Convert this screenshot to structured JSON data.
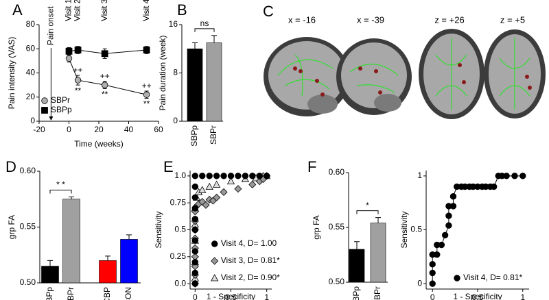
{
  "chart_data": [
    {
      "type": "line",
      "panel": "A",
      "ylabel": "Pain intensity (VAS)",
      "xlabel": "Time (weeks)",
      "xlim": [
        -20,
        60
      ],
      "xticks": [
        -20,
        0,
        20,
        40,
        60
      ],
      "ylim": [
        0,
        80
      ],
      "yticks": [
        0,
        20,
        40,
        60,
        80
      ],
      "legend": "lower left",
      "events": [
        {
          "label": "Pain onset",
          "x": -12
        }
      ],
      "visits": [
        {
          "label": "Visit 1",
          "x": 0
        },
        {
          "label": "Visit 2",
          "x": 6
        },
        {
          "label": "Visit 3",
          "x": 24
        },
        {
          "label": "Visit 4",
          "x": 52
        }
      ],
      "series": [
        {
          "name": "SBPr",
          "color": "#b0b0b0",
          "marker": "circle",
          "x": [
            0,
            6,
            24,
            52
          ],
          "values": [
            52,
            34,
            30,
            22
          ],
          "errors": [
            3,
            4,
            3,
            3
          ],
          "labels_above": [
            null,
            "++",
            "++",
            "++"
          ],
          "labels_below": [
            null,
            "**",
            "**",
            "**"
          ]
        },
        {
          "name": "SBPp",
          "color": "#000000",
          "marker": "square",
          "x": [
            0,
            6,
            24,
            52
          ],
          "values": [
            58,
            59,
            56,
            59
          ],
          "errors": [
            3,
            3,
            4,
            3
          ]
        }
      ]
    },
    {
      "type": "bar",
      "panel": "B",
      "ylabel": "Pain duration (week)",
      "categories": [
        "SBPp",
        "SBPr"
      ],
      "values": [
        12,
        13
      ],
      "errors": [
        1,
        1.2
      ],
      "colors": [
        "#000000",
        "#a0a0a0"
      ],
      "ylim": [
        0,
        16
      ],
      "yticks": [
        0,
        8,
        16
      ],
      "significance": "ns"
    },
    {
      "type": "image",
      "panel": "C",
      "labels": [
        "x = -16",
        "x = -39",
        "z = +26",
        "z = +5"
      ]
    },
    {
      "type": "bar",
      "panel": "D",
      "ylabel": "grp FA",
      "categories": [
        "SBPp",
        "SBPr",
        "CBP",
        "CON"
      ],
      "values": [
        0.515,
        0.575,
        0.52,
        0.539
      ],
      "errors": [
        0.005,
        0.002,
        0.004,
        0.004
      ],
      "colors": [
        "#000000",
        "#a0a0a0",
        "#ff0000",
        "#0000ff"
      ],
      "ylim": [
        0.5,
        0.6
      ],
      "yticks": [
        {
          "value": 0.5,
          "label": "0.50"
        },
        0.55,
        {
          "value": 0.6,
          "label": "0.60"
        }
      ],
      "significance": "* *"
    },
    {
      "type": "scatter",
      "panel": "E",
      "ylabel": "Sensitivity",
      "xlabel": "1 - Specificity",
      "xlim": [
        -0.07,
        1.07
      ],
      "xticks": [
        0,
        0.5,
        1
      ],
      "ylim": [
        -0.05,
        1.05
      ],
      "yticks": [
        {
          "value": 0,
          "label": "0.0"
        },
        0.25,
        0.5,
        0.75,
        {
          "value": 1,
          "label": "1.0"
        }
      ],
      "legend": "lower right",
      "series": [
        {
          "name": "Visit 4, D= 1.00",
          "color": "#000000",
          "marker": "circle",
          "x": [
            0,
            0,
            0,
            0,
            0,
            0,
            0,
            0,
            0,
            0,
            0,
            0.1,
            0.2,
            0.3,
            0.4,
            0.5,
            0.6,
            0.7,
            0.8,
            0.9,
            1
          ],
          "values": [
            0,
            0.1,
            0.2,
            0.3,
            0.4,
            0.5,
            0.6,
            0.7,
            0.8,
            0.9,
            1,
            1,
            1,
            1,
            1,
            1,
            1,
            1,
            1,
            1,
            1
          ]
        },
        {
          "name": "Visit 3, D= 0.81*",
          "color": "#999999",
          "marker": "diamond",
          "x": [
            0,
            0,
            0,
            0,
            0,
            0,
            0,
            0,
            0,
            0.02,
            0.05,
            0.1,
            0.15,
            0.2,
            0.25,
            0.3,
            0.4,
            0.6,
            0.8,
            0.9,
            0.95,
            1
          ],
          "values": [
            0,
            0.08,
            0.16,
            0.25,
            0.33,
            0.42,
            0.5,
            0.58,
            0.67,
            0.72,
            0.74,
            0.76,
            0.73,
            0.78,
            0.77,
            0.8,
            0.85,
            0.88,
            0.92,
            0.95,
            0.97,
            1
          ]
        },
        {
          "name": "Visit 2, D= 0.90*",
          "color": "#dddddd",
          "marker": "triangle",
          "x": [
            0,
            0,
            0,
            0,
            0,
            0.02,
            0.05,
            0.1,
            0.2,
            0.3,
            0.5,
            0.7,
            0.85,
            0.95,
            1
          ],
          "values": [
            0.05,
            0.2,
            0.4,
            0.55,
            0.7,
            0.8,
            0.85,
            0.87,
            0.9,
            0.92,
            0.95,
            0.97,
            0.98,
            1,
            1
          ]
        }
      ]
    },
    {
      "type": "bar",
      "panel": "F",
      "ylabel": "grp FA",
      "categories": [
        "SBPp",
        "SBPr"
      ],
      "values": [
        0.53,
        0.554
      ],
      "errors": [
        0.007,
        0.005
      ],
      "colors": [
        "#000000",
        "#a0a0a0"
      ],
      "ylim": [
        0.5,
        0.6
      ],
      "yticks": [
        {
          "value": 0.5,
          "label": "0.50"
        },
        0.55,
        {
          "value": 0.6,
          "label": "0.60"
        }
      ],
      "significance": "*"
    },
    {
      "type": "scatter",
      "ylabel": "Sensitivity",
      "xlabel": "1 - Specificity",
      "xlim": [
        -0.07,
        1.07
      ],
      "xticks": [
        0,
        0.5,
        1
      ],
      "ylim": [
        -0.05,
        1.05
      ],
      "yticks": [
        0,
        0.5,
        1
      ],
      "legend": "lower right",
      "series": [
        {
          "name": "Visit 4, D= 0.81*",
          "color": "#000000",
          "marker": "circle",
          "line": true,
          "x": [
            0,
            0,
            0,
            0,
            0.05,
            0.05,
            0.1,
            0.14,
            0.18,
            0.18,
            0.18,
            0.23,
            0.23,
            0.27,
            0.32,
            0.36,
            0.41,
            0.45,
            0.5,
            0.55,
            0.59,
            0.64,
            0.68,
            0.73,
            0.77,
            0.82,
            0.91,
            1
          ],
          "values": [
            0,
            0.1,
            0.18,
            0.27,
            0.27,
            0.36,
            0.36,
            0.45,
            0.54,
            0.63,
            0.72,
            0.72,
            0.81,
            0.9,
            0.9,
            0.9,
            0.9,
            0.9,
            0.9,
            0.9,
            0.9,
            0.9,
            0.9,
            1,
            1,
            1,
            1,
            1
          ]
        }
      ]
    }
  ]
}
